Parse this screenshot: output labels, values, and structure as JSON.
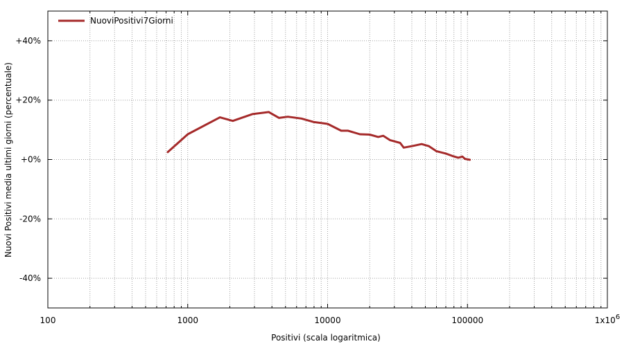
{
  "chart_data": {
    "type": "line",
    "title": "",
    "xlabel": "Positivi (scala logaritmica)",
    "ylabel": "Nuovi Positivi media ultimi giorni (percentuale)",
    "x_scale": "log",
    "xlim": [
      100,
      1000000
    ],
    "ylim": [
      -50,
      50
    ],
    "grid": true,
    "legend_position": "top-left",
    "x_ticks": [
      {
        "value": 100,
        "label": "100"
      },
      {
        "value": 1000,
        "label": "1000"
      },
      {
        "value": 10000,
        "label": "10000"
      },
      {
        "value": 100000,
        "label": "100000"
      },
      {
        "value": 1000000,
        "label": "1x10",
        "sup": "6"
      }
    ],
    "y_ticks": [
      {
        "value": 40,
        "label": "+40%"
      },
      {
        "value": 20,
        "label": "+20%"
      },
      {
        "value": 0,
        "label": "+0%"
      },
      {
        "value": -20,
        "label": "-20%"
      },
      {
        "value": -40,
        "label": "-40%"
      }
    ],
    "series": [
      {
        "name": "NuoviPositivi7Giorni",
        "color": "#a52a2a",
        "points": [
          {
            "x": 720,
            "y": 2.5
          },
          {
            "x": 1000,
            "y": 8.5
          },
          {
            "x": 1700,
            "y": 14.2
          },
          {
            "x": 2100,
            "y": 13.0
          },
          {
            "x": 2900,
            "y": 15.3
          },
          {
            "x": 3800,
            "y": 16.0
          },
          {
            "x": 4500,
            "y": 14.0
          },
          {
            "x": 5200,
            "y": 14.4
          },
          {
            "x": 6500,
            "y": 13.8
          },
          {
            "x": 8000,
            "y": 12.6
          },
          {
            "x": 10000,
            "y": 12.0
          },
          {
            "x": 12500,
            "y": 9.7
          },
          {
            "x": 14000,
            "y": 9.7
          },
          {
            "x": 17000,
            "y": 8.5
          },
          {
            "x": 20000,
            "y": 8.4
          },
          {
            "x": 23000,
            "y": 7.6
          },
          {
            "x": 25000,
            "y": 8.0
          },
          {
            "x": 28000,
            "y": 6.5
          },
          {
            "x": 33000,
            "y": 5.6
          },
          {
            "x": 35000,
            "y": 4.0
          },
          {
            "x": 40000,
            "y": 4.5
          },
          {
            "x": 47000,
            "y": 5.2
          },
          {
            "x": 53000,
            "y": 4.5
          },
          {
            "x": 60000,
            "y": 2.8
          },
          {
            "x": 70000,
            "y": 2.0
          },
          {
            "x": 78000,
            "y": 1.2
          },
          {
            "x": 86000,
            "y": 0.6
          },
          {
            "x": 92000,
            "y": 1.0
          },
          {
            "x": 96000,
            "y": 0.2
          },
          {
            "x": 104000,
            "y": -0.1
          }
        ]
      }
    ]
  }
}
